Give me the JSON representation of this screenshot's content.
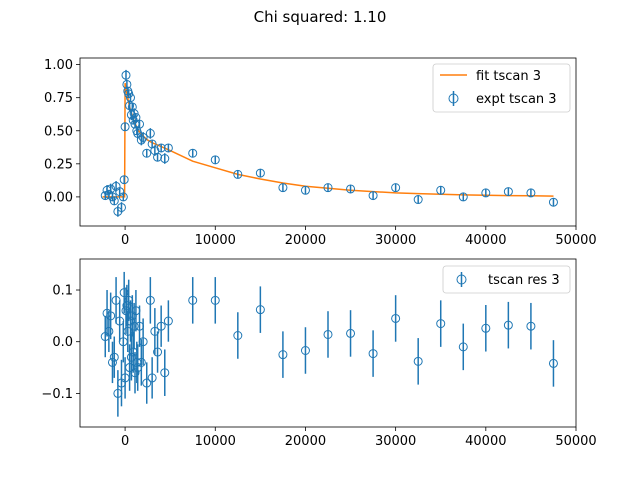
{
  "figure_title": "Chi squared: 1.10",
  "colors": {
    "fit": "#ff7f0e",
    "data": "#1f77b4",
    "axis": "#000000"
  },
  "chart_data": [
    {
      "type": "scatter",
      "xlim": [
        -5000,
        50000
      ],
      "ylim": [
        -0.22,
        1.05
      ],
      "xticks": [
        0,
        10000,
        20000,
        30000,
        40000,
        50000
      ],
      "yticks": [
        0.0,
        0.25,
        0.5,
        0.75,
        1.0
      ],
      "xtick_labels": [
        "0",
        "10000",
        "20000",
        "30000",
        "40000",
        "50000"
      ],
      "ytick_labels": [
        "0.00",
        "0.25",
        "0.50",
        "0.75",
        "1.00"
      ],
      "legend_position": "top-right",
      "series": [
        {
          "name": "fit tscan 3",
          "kind": "line",
          "x": [
            -2500,
            -1000,
            -50,
            0,
            200,
            500,
            1000,
            1500,
            2000,
            2500,
            3000,
            4000,
            5000,
            7500,
            10000,
            12500,
            15000,
            17500,
            20000,
            22500,
            25000,
            27500,
            30000,
            32500,
            35000,
            37500,
            40000,
            42500,
            45000,
            47500
          ],
          "y": [
            0.0,
            0.0,
            0.0,
            0.86,
            0.78,
            0.68,
            0.57,
            0.5,
            0.46,
            0.43,
            0.41,
            0.38,
            0.35,
            0.27,
            0.22,
            0.17,
            0.135,
            0.105,
            0.08,
            0.065,
            0.05,
            0.04,
            0.03,
            0.025,
            0.02,
            0.015,
            0.012,
            0.01,
            0.008,
            0.006
          ]
        },
        {
          "name": "expt tscan 3",
          "kind": "errorbar",
          "x": [
            -2200,
            -2000,
            -1800,
            -1600,
            -1400,
            -1200,
            -1000,
            -800,
            -600,
            -400,
            -200,
            -100,
            0,
            100,
            200,
            300,
            400,
            500,
            600,
            700,
            800,
            900,
            1000,
            1100,
            1200,
            1300,
            1400,
            1600,
            1800,
            2000,
            2400,
            2800,
            3000,
            3300,
            3600,
            4000,
            4400,
            4800,
            7500,
            10000,
            12500,
            15000,
            17500,
            20000,
            22500,
            25000,
            27500,
            30000,
            32500,
            35000,
            37500,
            40000,
            42500,
            45000,
            47500
          ],
          "y": [
            0.01,
            0.05,
            0.02,
            0.06,
            0.0,
            -0.03,
            0.08,
            -0.11,
            0.04,
            -0.08,
            0.0,
            0.13,
            0.53,
            0.92,
            0.85,
            0.8,
            0.78,
            0.69,
            0.75,
            0.62,
            0.68,
            0.58,
            0.63,
            0.55,
            0.6,
            0.5,
            0.48,
            0.55,
            0.43,
            0.45,
            0.33,
            0.48,
            0.4,
            0.35,
            0.3,
            0.37,
            0.29,
            0.37,
            0.33,
            0.28,
            0.17,
            0.18,
            0.07,
            0.05,
            0.07,
            0.06,
            0.01,
            0.07,
            -0.02,
            0.05,
            0.0,
            0.03,
            0.04,
            0.03,
            -0.04
          ],
          "yerr": [
            0.03,
            0.04,
            0.03,
            0.04,
            0.03,
            0.03,
            0.04,
            0.04,
            0.03,
            0.04,
            0.03,
            0.03,
            0.03,
            0.04,
            0.03,
            0.03,
            0.03,
            0.04,
            0.03,
            0.04,
            0.03,
            0.03,
            0.04,
            0.03,
            0.03,
            0.03,
            0.04,
            0.03,
            0.04,
            0.04,
            0.03,
            0.04,
            0.03,
            0.04,
            0.03,
            0.03,
            0.04,
            0.03,
            0.03,
            0.03,
            0.03,
            0.03,
            0.03,
            0.03,
            0.03,
            0.03,
            0.03,
            0.03,
            0.03,
            0.03,
            0.03,
            0.03,
            0.03,
            0.03,
            0.03
          ]
        }
      ]
    },
    {
      "type": "scatter",
      "xlim": [
        -5000,
        50000
      ],
      "ylim": [
        -0.165,
        0.16
      ],
      "xticks": [
        0,
        10000,
        20000,
        30000,
        40000,
        50000
      ],
      "yticks": [
        -0.1,
        0.0,
        0.1
      ],
      "xtick_labels": [
        "0",
        "10000",
        "20000",
        "30000",
        "40000",
        "50000"
      ],
      "ytick_labels": [
        "−0.1",
        "0.0",
        "0.1"
      ],
      "legend_position": "top-right",
      "series": [
        {
          "name": "tscan res 3",
          "kind": "errorbar",
          "x": [
            -2200,
            -2000,
            -1800,
            -1600,
            -1400,
            -1200,
            -1000,
            -800,
            -600,
            -400,
            -200,
            -100,
            0,
            100,
            200,
            300,
            400,
            500,
            600,
            700,
            800,
            900,
            1000,
            1100,
            1200,
            1300,
            1400,
            1600,
            1800,
            2000,
            2400,
            2800,
            3000,
            3300,
            3600,
            4000,
            4400,
            4800,
            7500,
            10000,
            12500,
            15000,
            17500,
            20000,
            22500,
            25000,
            27500,
            30000,
            32500,
            35000,
            37500,
            40000,
            42500,
            45000,
            47500
          ],
          "y": [
            0.01,
            0.055,
            0.02,
            0.05,
            -0.04,
            -0.03,
            0.08,
            -0.1,
            0.04,
            -0.08,
            0.0,
            0.095,
            -0.07,
            0.06,
            0.07,
            0.02,
            0.08,
            -0.05,
            0.04,
            -0.03,
            0.05,
            -0.02,
            0.03,
            -0.06,
            0.06,
            -0.04,
            -0.05,
            0.03,
            -0.04,
            0.0,
            -0.08,
            0.08,
            -0.07,
            0.02,
            -0.02,
            0.03,
            -0.06,
            0.04,
            0.08,
            0.08,
            0.012,
            0.062,
            -0.025,
            -0.017,
            0.014,
            0.016,
            -0.023,
            0.045,
            -0.038,
            0.035,
            -0.01,
            0.026,
            0.032,
            0.03,
            -0.042
          ],
          "yerr": [
            0.04,
            0.045,
            0.04,
            0.045,
            0.04,
            0.04,
            0.045,
            0.045,
            0.04,
            0.045,
            0.04,
            0.04,
            0.04,
            0.045,
            0.04,
            0.04,
            0.04,
            0.045,
            0.04,
            0.045,
            0.04,
            0.04,
            0.045,
            0.04,
            0.04,
            0.04,
            0.045,
            0.04,
            0.045,
            0.045,
            0.04,
            0.045,
            0.04,
            0.045,
            0.04,
            0.04,
            0.045,
            0.04,
            0.045,
            0.045,
            0.045,
            0.045,
            0.045,
            0.045,
            0.045,
            0.045,
            0.045,
            0.045,
            0.045,
            0.045,
            0.045,
            0.045,
            0.045,
            0.045,
            0.045
          ]
        }
      ]
    }
  ]
}
